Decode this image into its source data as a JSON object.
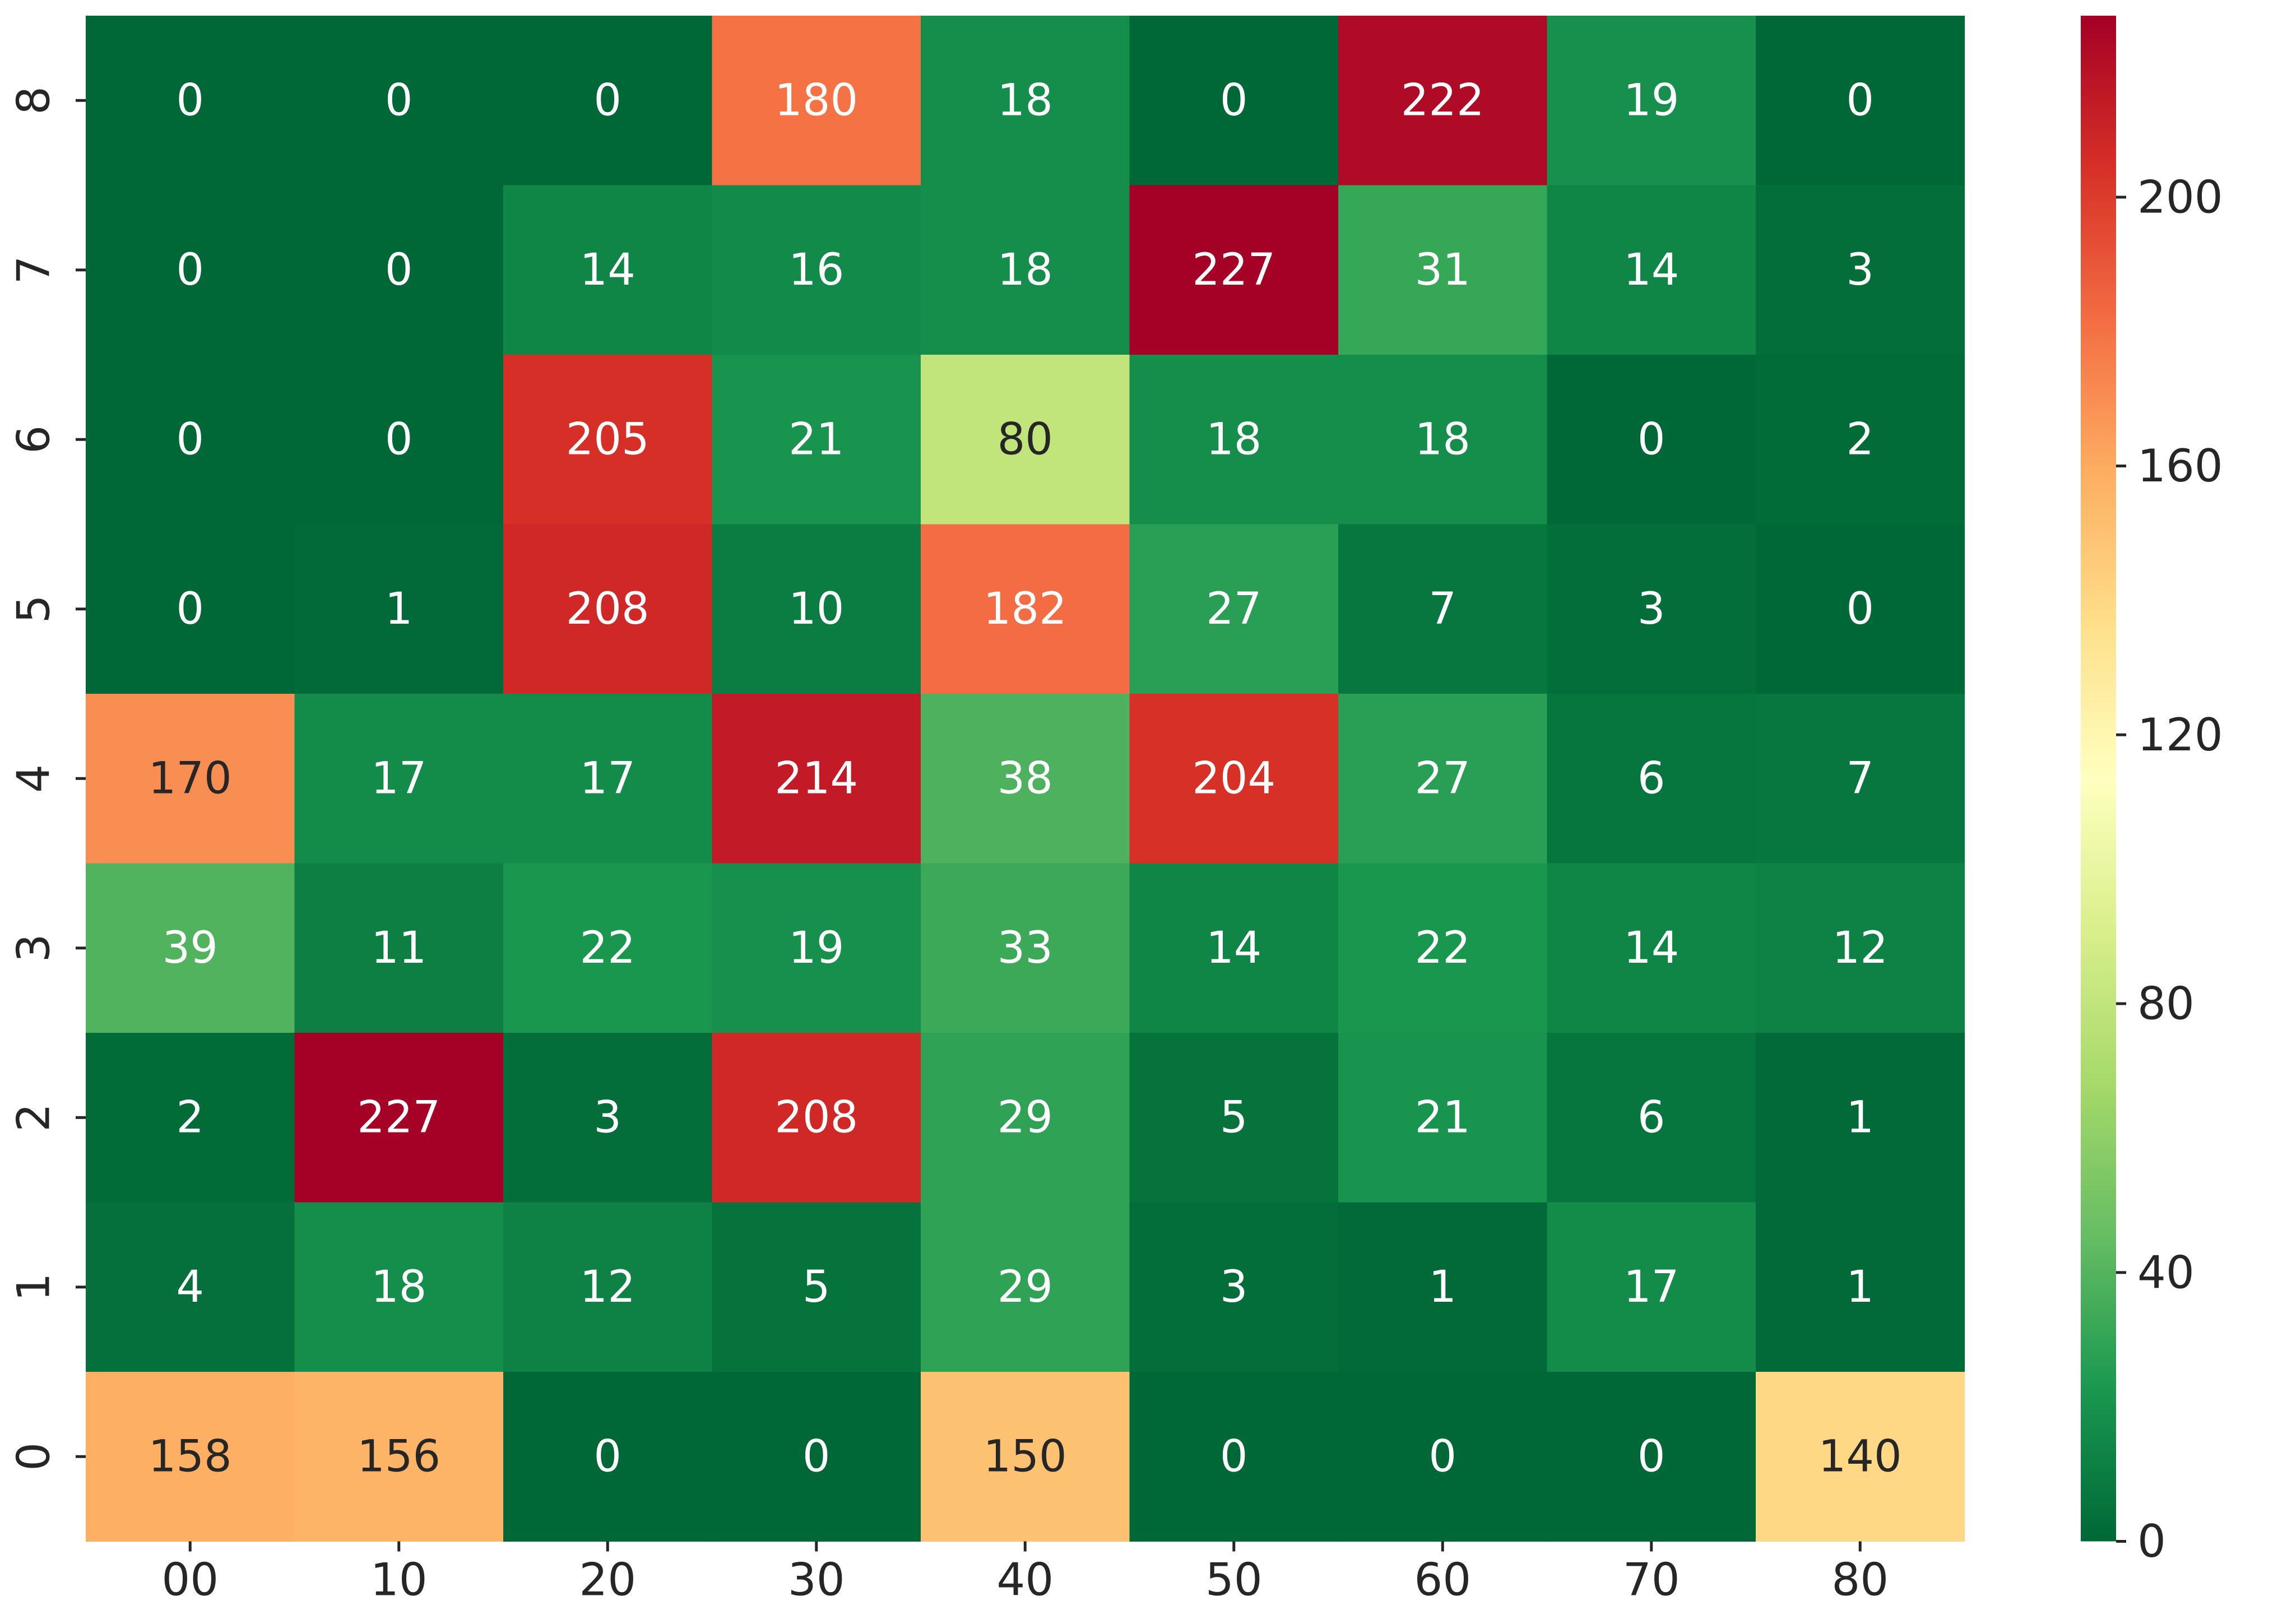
{
  "chart_data": {
    "type": "heatmap",
    "x_categories": [
      "00",
      "10",
      "20",
      "30",
      "40",
      "50",
      "60",
      "70",
      "80"
    ],
    "y_categories": [
      "8",
      "7",
      "6",
      "5",
      "4",
      "3",
      "2",
      "1",
      "0"
    ],
    "values": [
      [
        0,
        0,
        0,
        180,
        18,
        0,
        222,
        19,
        0
      ],
      [
        0,
        0,
        14,
        16,
        18,
        227,
        31,
        14,
        3
      ],
      [
        0,
        0,
        205,
        21,
        80,
        18,
        18,
        0,
        2
      ],
      [
        0,
        1,
        208,
        10,
        182,
        27,
        7,
        3,
        0
      ],
      [
        170,
        17,
        17,
        214,
        38,
        204,
        27,
        6,
        7
      ],
      [
        39,
        11,
        22,
        19,
        33,
        14,
        22,
        14,
        12
      ],
      [
        2,
        227,
        3,
        208,
        29,
        5,
        21,
        6,
        1
      ],
      [
        4,
        18,
        12,
        5,
        29,
        3,
        1,
        17,
        1
      ],
      [
        158,
        156,
        0,
        0,
        150,
        0,
        0,
        0,
        140
      ]
    ],
    "vmin": 0,
    "vmax": 227,
    "colormap": "RdYlGn_r",
    "colorbar_ticks": [
      0,
      40,
      80,
      120,
      160,
      200
    ],
    "annotations": true,
    "title": "",
    "xlabel": "",
    "ylabel": "",
    "dark_text_color": "#262626",
    "light_text_color": "#ffffff"
  }
}
